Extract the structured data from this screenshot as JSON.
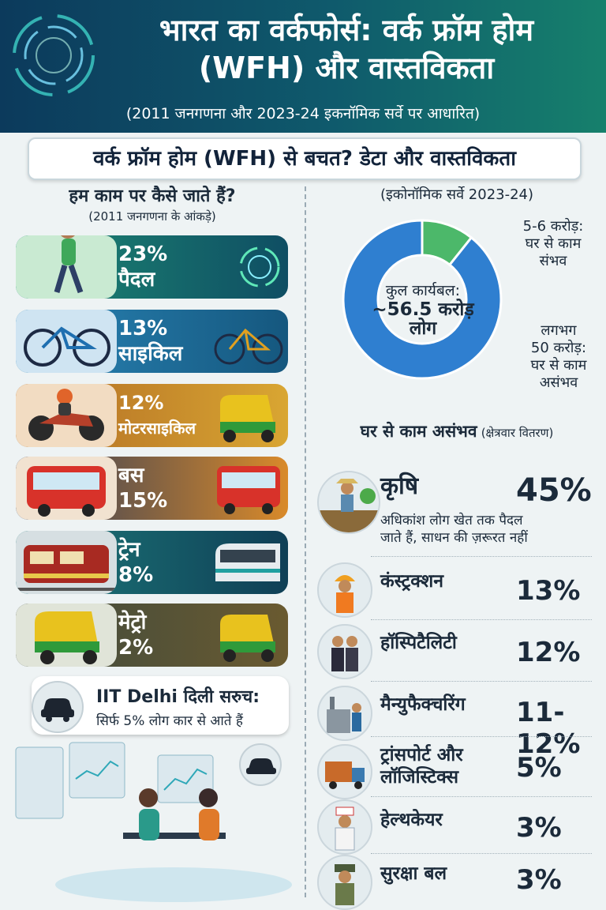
{
  "header": {
    "title_line1": "भारत का वर्कफोर्स: वर्क फ्रॉम होम",
    "title_line2": "(WFH) और वास्तविकता",
    "subtitle": "(2011 जनगणना और 2023-24 इकनॉमिक सर्वे पर आधारित)"
  },
  "banner": "वर्क फ्रॉम होम (WFH) से बचत? डेटा और वास्तविकता",
  "commute": {
    "heading": "हम काम पर कैसे जाते हैं?",
    "subheading": "(2011 जनगणना के आंकड़े)",
    "items": [
      {
        "line1": "23%",
        "line2": "पैदल",
        "value": 23,
        "color": "#1d8a74"
      },
      {
        "line1": "13%",
        "line2": "साइकिल",
        "value": 13,
        "color": "#2a86b8"
      },
      {
        "line1": "12%",
        "line2": "मोटरसाइकिल",
        "value": 12,
        "color": "#c88a24"
      },
      {
        "line1": "बस",
        "line2": "15%",
        "value": 15,
        "color": "#c87a2a"
      },
      {
        "line1": "ट्रेन",
        "line2": "8%",
        "value": 8,
        "color": "#1d7a7a"
      },
      {
        "line1": "मेट्रो",
        "line2": "2%",
        "value": 2,
        "color": "#4e4a3c"
      }
    ],
    "iit_line1": "IIT Delhi दिली सरुच:",
    "iit_line2": "सिर्फ 5% लोग कार से आते हैं"
  },
  "survey": {
    "heading": "(इकोनॉमिक सर्वे 2023-24)",
    "center_l1": "कुल कार्यबल:",
    "center_l2": "~56.5 करोड़",
    "center_l3": "लोग",
    "wfh_possible_l1": "5-6 करोड़:",
    "wfh_possible_l2": "घर से काम",
    "wfh_possible_l3": "संभव",
    "wfh_impossible_l1": "लगभग",
    "wfh_impossible_l2": "50 करोड़:",
    "wfh_impossible_l3": "घर से काम",
    "wfh_impossible_l4": "असंभव",
    "wfh_possible_value": 6,
    "wfh_impossible_value": 50,
    "colors": {
      "possible": "#4cb86a",
      "impossible": "#2f7fd0"
    }
  },
  "sectors": {
    "heading": "घर से काम असंभव",
    "heading_small": "(क्षेत्रवार वितरण)",
    "agri": {
      "name": "कृषि",
      "pct": "45%",
      "note_l1": "अधिकांश लोग खेत तक पैदल",
      "note_l2": "जाते हैं, साधन की ज़रूरत नहीं"
    },
    "items": [
      {
        "name_l1": "कंस्ट्रक्शन",
        "name_l2": "",
        "pct": "13%"
      },
      {
        "name_l1": "हॉस्पिटैलिटी",
        "name_l2": "",
        "pct": "12%"
      },
      {
        "name_l1": "मैन्युफैक्चरिंग",
        "name_l2": "",
        "pct": "11-12%"
      },
      {
        "name_l1": "ट्रांसपोर्ट और",
        "name_l2": "लॉजिस्टिक्स",
        "pct": "5%"
      },
      {
        "name_l1": "हेल्थकेयर",
        "name_l2": "",
        "pct": "3%"
      },
      {
        "name_l1": "सुरक्षा बल",
        "name_l2": "",
        "pct": "3%"
      }
    ]
  }
}
